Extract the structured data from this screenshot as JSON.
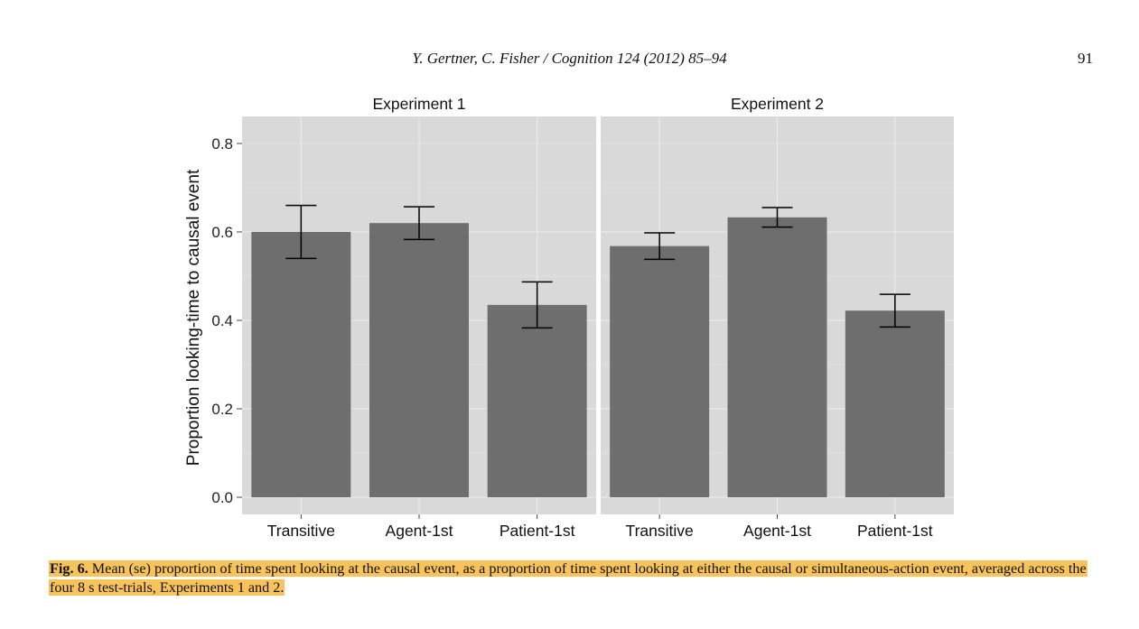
{
  "page": {
    "running_head": "Y. Gertner, C. Fisher / Cognition 124 (2012) 85–94",
    "page_number": "91"
  },
  "caption": {
    "label": "Fig. 6.",
    "text": "Mean (se) proportion of time spent looking at the causal event, as a proportion of time spent looking at either the causal or simultaneous-action event, averaged across the four 8 s test-trials, Experiments 1 and 2."
  },
  "colors": {
    "panel_bg": "#d9d9d9",
    "bar": "#6e6e6e",
    "grid": "#ececec",
    "error_bar": "#000000"
  },
  "chart_data": {
    "type": "bar",
    "ylabel": "Proportion looking-time to causal event",
    "xlabel": "",
    "ylim": [
      0,
      0.85
    ],
    "yticks": [
      "0.0",
      "0.2",
      "0.4",
      "0.6",
      "0.8"
    ],
    "grid": true,
    "panels": [
      {
        "title": "Experiment 1",
        "categories": [
          "Transitive",
          "Agent-1st",
          "Patient-1st"
        ],
        "values": [
          0.6,
          0.62,
          0.435
        ],
        "errors": [
          0.06,
          0.037,
          0.052
        ]
      },
      {
        "title": "Experiment 2",
        "categories": [
          "Transitive",
          "Agent-1st",
          "Patient-1st"
        ],
        "values": [
          0.568,
          0.633,
          0.422
        ],
        "errors": [
          0.03,
          0.022,
          0.037
        ]
      }
    ]
  }
}
